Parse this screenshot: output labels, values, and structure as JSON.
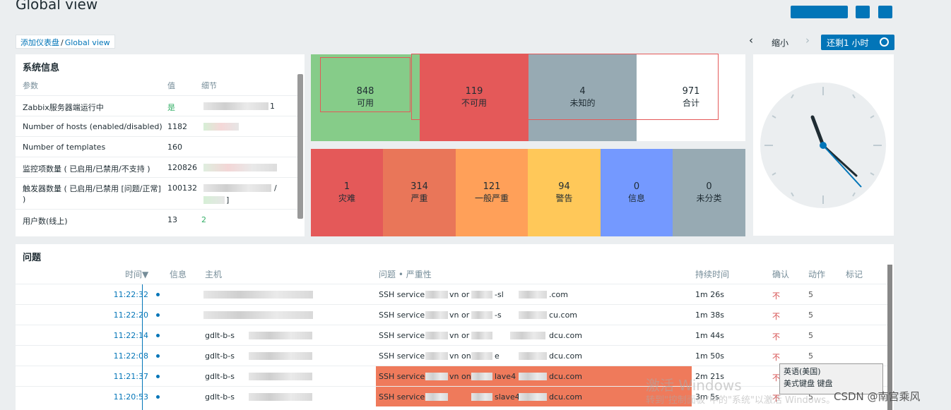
{
  "page": {
    "title": "Global view"
  },
  "breadcrumb": {
    "parent": "添加仪表盘",
    "separator": "/",
    "current": "Global view"
  },
  "nav": {
    "prev_arrow": "‹",
    "zoom_out": "缩小",
    "next_arrow": "›",
    "time_button": "还剩1 小时",
    "clock_icon": "clock-icon"
  },
  "sysinfo": {
    "title": "系统信息",
    "headers": {
      "param": "参数",
      "value": "值",
      "details": "细节"
    },
    "rows": [
      {
        "param": "Zabbix服务器端运行中",
        "value": "是",
        "details": "1"
      },
      {
        "param": "Number of hosts (enabled/disabled)",
        "value": "1182",
        "details": ""
      },
      {
        "param": "Number of templates",
        "value": "160",
        "details": ""
      },
      {
        "param": "监控项数量 ( 已启用/已禁用/不支持 )",
        "value": "120826",
        "details": ""
      },
      {
        "param": "触发器数量 ( 已启用/已禁用 [问题/正常] )",
        "value": "100132",
        "details": "/",
        "details2": "]"
      },
      {
        "param": "用户数(线上)",
        "value": "13",
        "details": "2"
      }
    ]
  },
  "host_availability": [
    {
      "count": "848",
      "label": "可用",
      "color": "#86cc89"
    },
    {
      "count": "119",
      "label": "不可用",
      "color": "#e45959"
    },
    {
      "count": "4",
      "label": "未知的",
      "color": "#97aab3"
    },
    {
      "count": "971",
      "label": "合计",
      "color": "#ffffff"
    }
  ],
  "severity": [
    {
      "count": "1",
      "label": "灾难",
      "color": "#e45959"
    },
    {
      "count": "314",
      "label": "严重",
      "color": "#e97659"
    },
    {
      "count": "121",
      "label": "一般严重",
      "color": "#ffa059"
    },
    {
      "count": "94",
      "label": "警告",
      "color": "#ffc859"
    },
    {
      "count": "0",
      "label": "信息",
      "color": "#7499ff"
    },
    {
      "count": "0",
      "label": "未分类",
      "color": "#97aab3"
    }
  ],
  "problems": {
    "title": "问题",
    "headers": {
      "time": "时间▼",
      "info": "信息",
      "host": "主机",
      "problem": "问题 • 严重性",
      "duration": "持续时间",
      "ack": "确认",
      "actions": "动作",
      "tags": "标记"
    },
    "rows": [
      {
        "time": "11:22:32",
        "host": "",
        "problem": "SSH service",
        "p_mid": "vn or",
        "p_mid2": "-sl",
        "p_end": "​.com",
        "duration": "1m 26s",
        "ack": "不",
        "highlight": false
      },
      {
        "time": "11:22:20",
        "host": "",
        "problem": "SSH service i",
        "p_mid": "vn or",
        "p_mid2": "-s",
        "p_end": "cu.com",
        "duration": "1m 38s",
        "ack": "不",
        "highlight": false
      },
      {
        "time": "11:22:14",
        "host": "gdlt-b-s",
        "problem": "SSH service i",
        "p_mid": "vn or",
        "p_mid2": "",
        "p_end": "dcu.com",
        "duration": "1m 44s",
        "ack": "不",
        "highlight": false
      },
      {
        "time": "11:22:08",
        "host": "gdlt-b-s",
        "problem": "SSH service",
        "p_mid": "vn on",
        "p_mid2": "e",
        "p_end": "dcu.com",
        "duration": "1m 50s",
        "ack": "不",
        "highlight": false
      },
      {
        "time": "11:21:37",
        "host": "gdlt-b-s",
        "problem": "SSH service",
        "p_mid": "vn on c",
        "p_mid2": "lave4",
        "p_end": "dcu.com",
        "duration": "2m 21s",
        "ack": "不",
        "highlight": true
      },
      {
        "time": "11:20:53",
        "host": "gdlt-b-s",
        "problem": "SSH service",
        "p_mid": "",
        "p_mid2": "slave4",
        "p_end": "dcu.com",
        "duration": "3m 5s",
        "ack": "不",
        "highlight": true
      }
    ],
    "action_icon": "5"
  },
  "ime_popup": {
    "line1": "英语(美国)",
    "line2": "美式键盘 键盘"
  },
  "watermark": {
    "line1": "激活 Windows",
    "line2": "转到\"控制面板\"中的\"系统\"以激活 Windows。"
  },
  "csdn": "CSDN @南宫乘风"
}
